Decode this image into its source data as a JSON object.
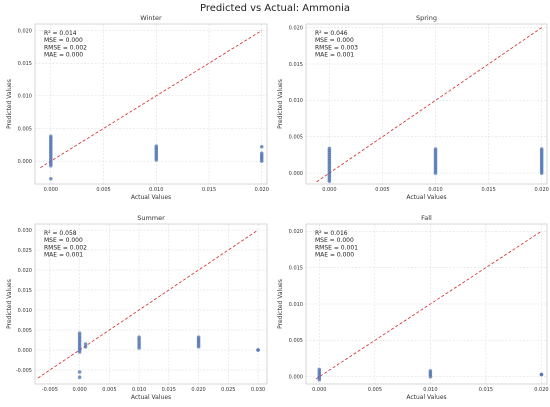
{
  "figure": {
    "title": "Predicted vs Actual: Ammonia"
  },
  "chart_data": [
    {
      "type": "scatter",
      "title": "Winter",
      "xlabel": "Actual Values",
      "ylabel": "Predicted Values",
      "xlim": [
        -0.0015,
        0.0205
      ],
      "ylim": [
        -0.0035,
        0.021
      ],
      "xticks": [
        0.0,
        0.005,
        0.01,
        0.015,
        0.02
      ],
      "xtick_labels": [
        "0.000",
        "0.005",
        "0.010",
        "0.015",
        "0.020"
      ],
      "yticks": [
        0.0,
        0.005,
        0.01,
        0.015,
        0.02
      ],
      "ytick_labels": [
        "0.000",
        "0.005",
        "0.010",
        "0.015",
        "0.020"
      ],
      "reference_line": {
        "from": [
          -0.001,
          -0.001
        ],
        "to": [
          0.02,
          0.02
        ]
      },
      "stats": [
        "R² = 0.014",
        "MSE = 0.000",
        "RMSE = 0.002",
        "MAE = 0.000"
      ],
      "groups": [
        {
          "x": 0.0,
          "y_min": -0.0007,
          "y_max": 0.0038,
          "outliers": [
            -0.0027
          ]
        },
        {
          "x": 0.01,
          "y_min": 0.0002,
          "y_max": 0.0023,
          "outliers": []
        },
        {
          "x": 0.02,
          "y_min": 0.0,
          "y_max": 0.0012,
          "outliers": [
            0.0022
          ]
        }
      ],
      "grid": true
    },
    {
      "type": "scatter",
      "title": "Spring",
      "xlabel": "Actual Values",
      "ylabel": "Predicted Values",
      "xlim": [
        -0.0022,
        0.0205
      ],
      "ylim": [
        -0.0015,
        0.0205
      ],
      "xticks": [
        0.0,
        0.005,
        0.01,
        0.015,
        0.02
      ],
      "xtick_labels": [
        "0.000",
        "0.005",
        "0.010",
        "0.015",
        "0.020"
      ],
      "yticks": [
        0.0,
        0.005,
        0.01,
        0.015,
        0.02
      ],
      "ytick_labels": [
        "0.000",
        "0.005",
        "0.010",
        "0.015",
        "0.020"
      ],
      "reference_line": {
        "from": [
          -0.0012,
          -0.0012
        ],
        "to": [
          0.02,
          0.02
        ]
      },
      "stats": [
        "R² = 0.046",
        "MSE = 0.000",
        "RMSE = 0.003",
        "MAE = 0.001"
      ],
      "groups": [
        {
          "x": 0.0,
          "y_min": -0.0011,
          "y_max": 0.0034,
          "outliers": []
        },
        {
          "x": 0.01,
          "y_min": 0.0,
          "y_max": 0.0033,
          "outliers": []
        },
        {
          "x": 0.02,
          "y_min": 0.0,
          "y_max": 0.0033,
          "outliers": []
        }
      ],
      "grid": true
    },
    {
      "type": "scatter",
      "title": "Summer",
      "xlabel": "Actual Values",
      "ylabel": "Predicted Values",
      "xlim": [
        -0.0075,
        0.0315
      ],
      "ylim": [
        -0.0085,
        0.0315
      ],
      "xticks": [
        -0.005,
        0.0,
        0.005,
        0.01,
        0.015,
        0.02,
        0.025,
        0.03
      ],
      "xtick_labels": [
        "-0.005",
        "0.000",
        "0.005",
        "0.010",
        "0.015",
        "0.020",
        "0.025",
        "0.030"
      ],
      "yticks": [
        -0.005,
        0.0,
        0.005,
        0.01,
        0.015,
        0.02,
        0.025,
        0.03
      ],
      "ytick_labels": [
        "-0.005",
        "0.000",
        "0.005",
        "0.010",
        "0.015",
        "0.020",
        "0.025",
        "0.030"
      ],
      "reference_line": {
        "from": [
          -0.007,
          -0.007
        ],
        "to": [
          0.03,
          0.03
        ]
      },
      "stats": [
        "R² = 0.058",
        "MSE = 0.000",
        "RMSE = 0.002",
        "MAE = 0.001"
      ],
      "groups": [
        {
          "x": 0.0,
          "y_min": -0.0005,
          "y_max": 0.0042,
          "outliers": [
            -0.0055,
            -0.0068
          ]
        },
        {
          "x": 0.001,
          "y_min": 0.0008,
          "y_max": 0.0015,
          "outliers": []
        },
        {
          "x": 0.01,
          "y_min": 0.0005,
          "y_max": 0.0032,
          "outliers": []
        },
        {
          "x": 0.02,
          "y_min": 0.0008,
          "y_max": 0.0032,
          "outliers": []
        },
        {
          "x": 0.03,
          "y_min": 0.0,
          "y_max": 0.0,
          "outliers": []
        }
      ],
      "grid": true
    },
    {
      "type": "scatter",
      "title": "Fall",
      "xlabel": "Actual Values",
      "ylabel": "Predicted Values",
      "xlim": [
        -0.0012,
        0.0205
      ],
      "ylim": [
        -0.001,
        0.021
      ],
      "xticks": [
        0.0,
        0.005,
        0.01,
        0.015,
        0.02
      ],
      "xtick_labels": [
        "0.000",
        "0.005",
        "0.010",
        "0.015",
        "0.020"
      ],
      "yticks": [
        0.0,
        0.005,
        0.01,
        0.015,
        0.02
      ],
      "ytick_labels": [
        "0.000",
        "0.005",
        "0.010",
        "0.015",
        "0.020"
      ],
      "reference_line": {
        "from": [
          -0.0003,
          -0.0003
        ],
        "to": [
          0.02,
          0.02
        ]
      },
      "stats": [
        "R² = 0.016",
        "MSE = 0.000",
        "RMSE = 0.001",
        "MAE = 0.000"
      ],
      "groups": [
        {
          "x": 0.0,
          "y_min": -0.0004,
          "y_max": 0.001,
          "outliers": []
        },
        {
          "x": 0.01,
          "y_min": 0.0,
          "y_max": 0.0008,
          "outliers": []
        },
        {
          "x": 0.02,
          "y_min": 0.0003,
          "y_max": 0.0003,
          "outliers": []
        }
      ],
      "grid": true
    }
  ],
  "colors": {
    "points": "#4c72b0",
    "reference_line": "#d62728"
  }
}
